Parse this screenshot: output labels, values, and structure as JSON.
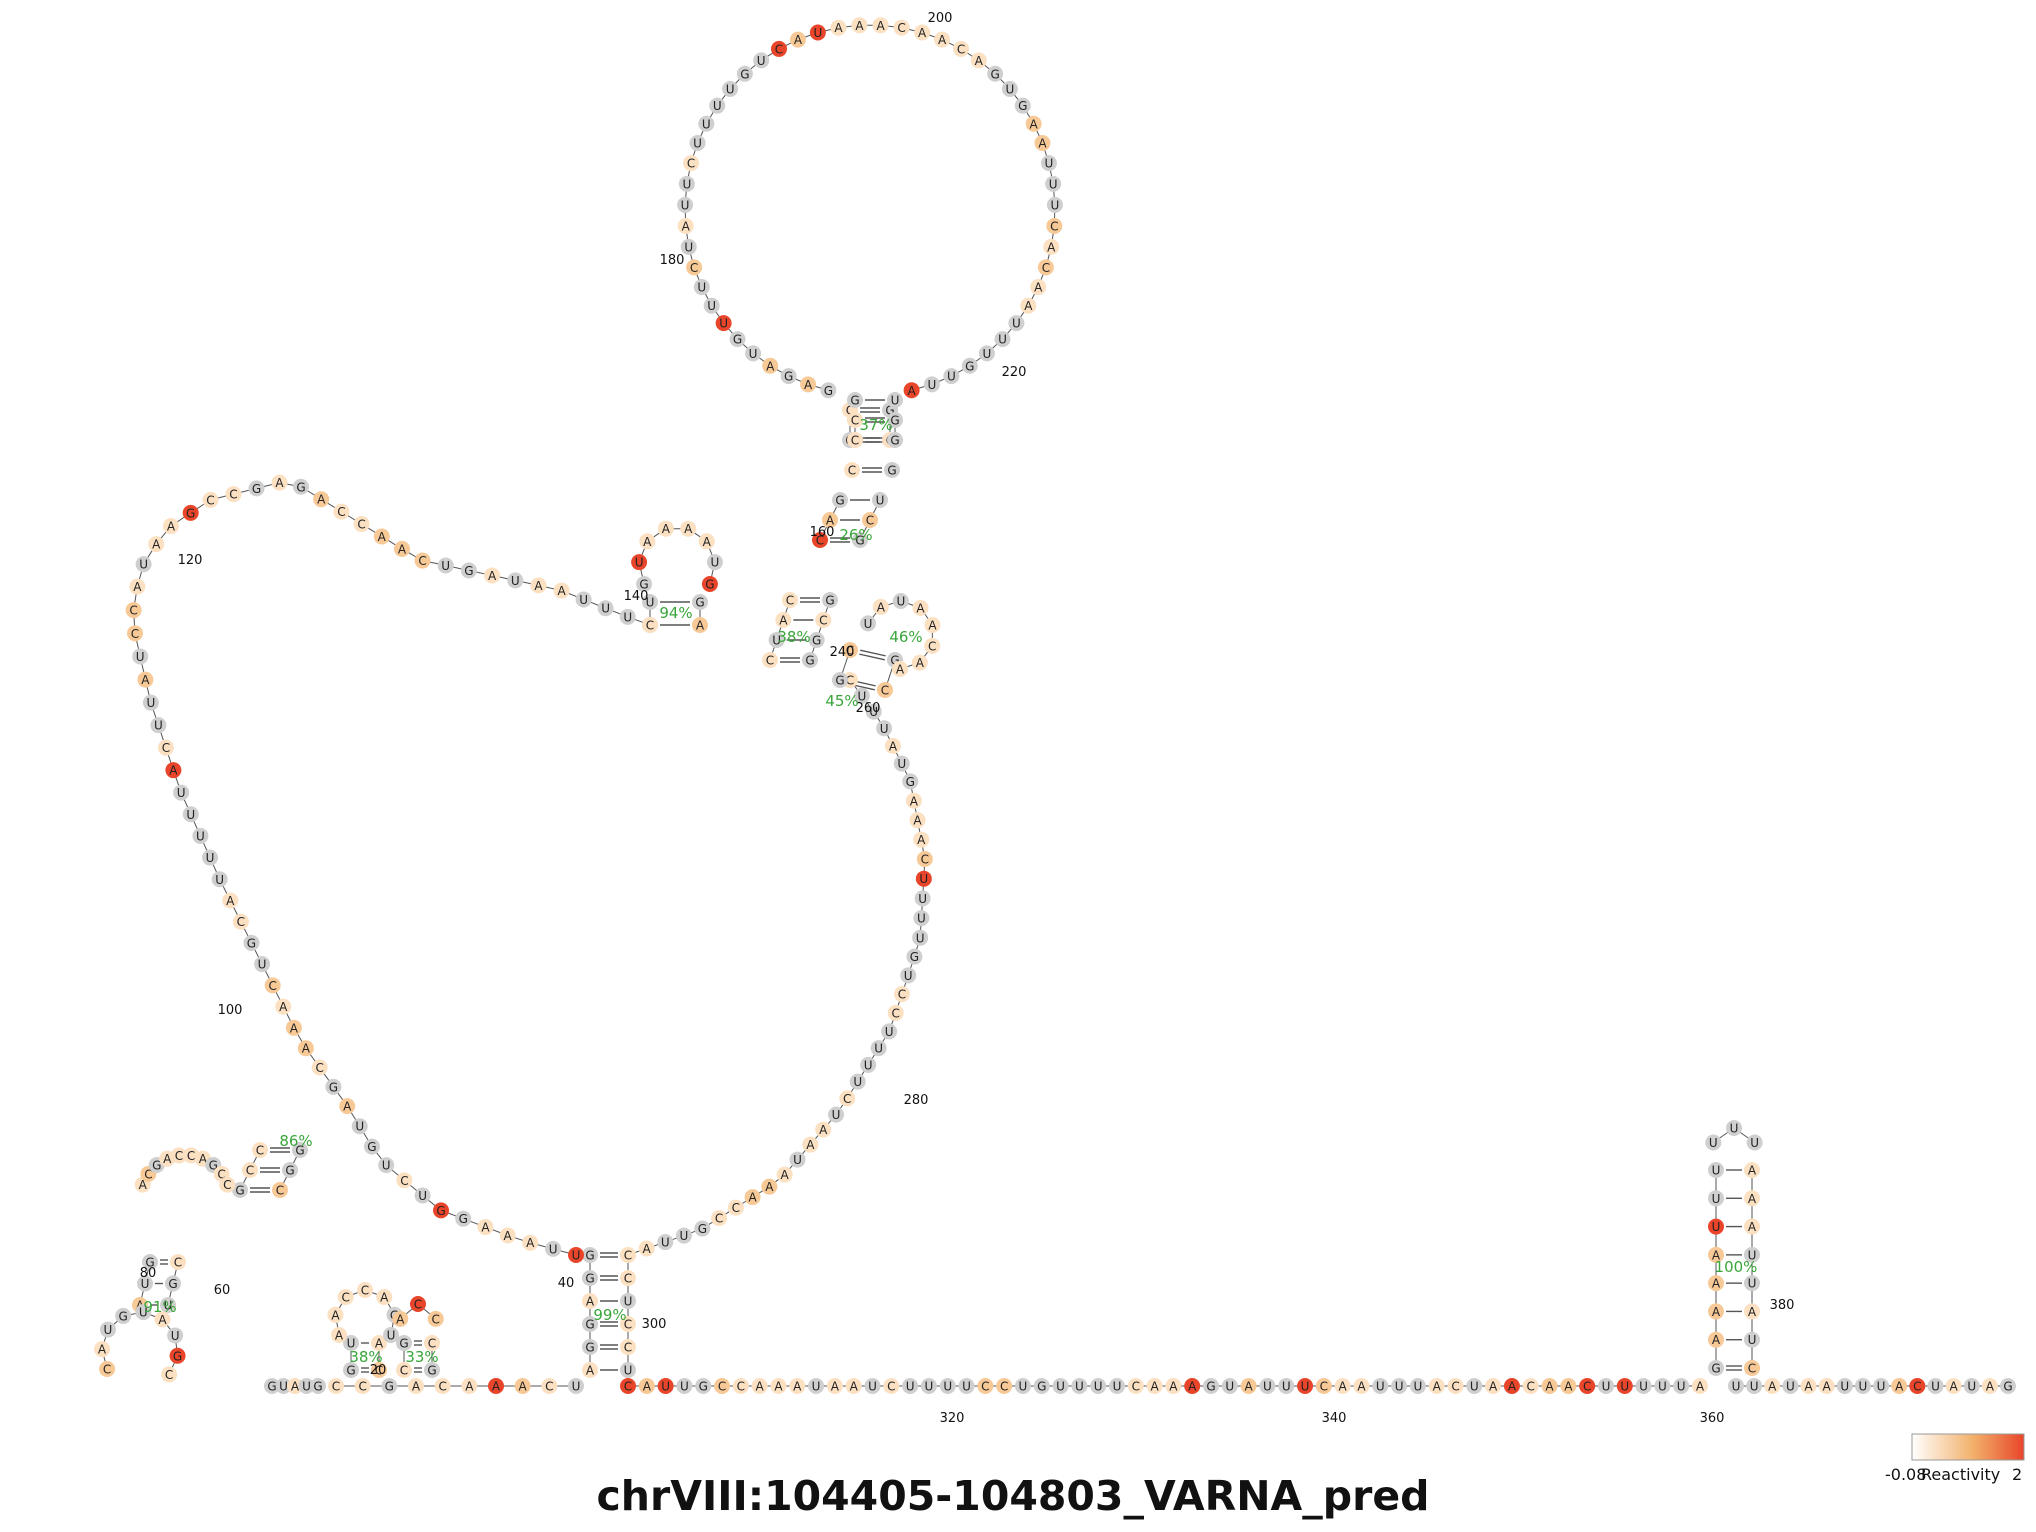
{
  "title": "chrVIII:104405-104803_VARNA_pred",
  "legend": {
    "min_label": "-0.08",
    "label": "Reactivity",
    "max_label": "2",
    "colors": [
      "#ffffff",
      "#f2b06a",
      "#e8452a"
    ]
  },
  "reactivity_colors": {
    "none": "#cfcfcf",
    "low": "#fbe0c2",
    "mid": "#f7c996",
    "high": "#e8452a"
  },
  "position_labels": [
    "20",
    "40",
    "60",
    "80",
    "100",
    "120",
    "140",
    "160",
    "180",
    "200",
    "220",
    "240",
    "260",
    "280",
    "300",
    "320",
    "340",
    "360",
    "380"
  ],
  "pair_percentages": [
    "91%",
    "86%",
    "38%",
    "33%",
    "99%",
    "94%",
    "38%",
    "26%",
    "37%",
    "46%",
    "45%",
    "100%"
  ],
  "strands": {
    "stem_5prime": "GUAUG",
    "stem_link": "CCGACAAACUG",
    "tail_3prime": "CAUUGCCAAAUAAUCUUUUCCUGUUUUCAAAGUAUUUCAAUUUACUAACAACUUUUUA",
    "end_tail": "UUAUAAUUUACUAUAG",
    "big_loop": "UUAAAGGUCUGUAGCAAACUGCAUUUUUACUUAUCCAUAAGCCGAGACCAACUGAUAAUUUGGCUAUAAUAUGCACAUUCAAAGAGGUAUUAAAACCAUACCAGUGUCACAA",
    "top_loop": "GAGAUGUUUCUAUUCUUUUGUCAUAAACAACAGUGAAUUUCACAAUUUGUUA",
    "right_hairpin": "UUUUUAUUAUUAAGCG"
  }
}
